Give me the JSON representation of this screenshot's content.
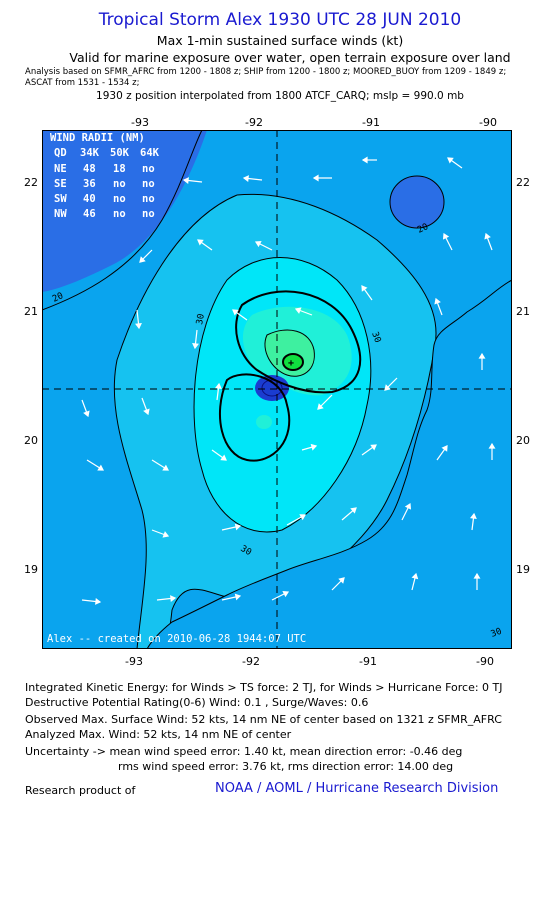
{
  "title": "Tropical Storm Alex 1930 UTC 28 JUN 2010",
  "subtitle": "Max 1-min sustained surface winds (kt)",
  "valid": "Valid for marine exposure over water, open terrain exposure over land",
  "analysis_line1": "Analysis based on  SFMR_AFRC from 1200 - 1808 z;  SHIP from 1200 - 1800 z;  MOORED_BUOY from 1209 - 1849 z;",
  "analysis_line2": "ASCAT from 1531 - 1534 z;",
  "position_line": "1930 z position interpolated from 1800 ATCF_CARQ; mslp = 990.0 mb",
  "map": {
    "lon_ticks": [
      "-93",
      "-92",
      "-91",
      "-90"
    ],
    "lat_ticks": [
      "22",
      "21",
      "20",
      "19"
    ],
    "contour_labels": [
      "20",
      "30",
      "30",
      "20",
      "30",
      "30"
    ],
    "credit": "Alex -- created on 2010-06-28 1944:07 UTC",
    "wind_radii": {
      "title": "WIND RADII (NM)",
      "header": [
        "QD",
        "34K",
        "50K",
        "64K"
      ],
      "rows": [
        [
          "NE",
          "48",
          "18",
          "no"
        ],
        [
          "SE",
          "36",
          "no",
          "no"
        ],
        [
          "SW",
          "40",
          "no",
          "no"
        ],
        [
          "NW",
          "46",
          "no",
          "no"
        ]
      ]
    },
    "colors": {
      "deep": "#2a6ee6",
      "base": "#0aa4ee",
      "light": "#16c2f0",
      "cyan": "#00e6f8",
      "aqua": "#20f0d8",
      "green": "#3ef0a0",
      "bright_green": "#10e040",
      "core": "#1a3cd0"
    }
  },
  "ike": "Integrated Kinetic Energy:  for Winds > TS force: 2 TJ,  for Winds > Hurricane Force: 0 TJ",
  "dpr": "Destructive Potential Rating(0-6)   Wind: 0.1 , Surge/Waves: 0.6",
  "observed": "Observed Max. Surface Wind: 52 kts, 14 nm NE of center based on 1321 z SFMR_AFRC",
  "analyzed": "Analyzed Max. Wind: 52 kts, 14 nm NE of center",
  "uncertainty1": "Uncertainty -> mean wind speed error: 1.40 kt,   mean direction error:  -0.46 deg",
  "uncertainty2": "rms wind speed error: 3.76 kt,   rms direction error: 14.00 deg",
  "research": "Research product of",
  "noaa": "NOAA / AOML / Hurricane Research Division"
}
